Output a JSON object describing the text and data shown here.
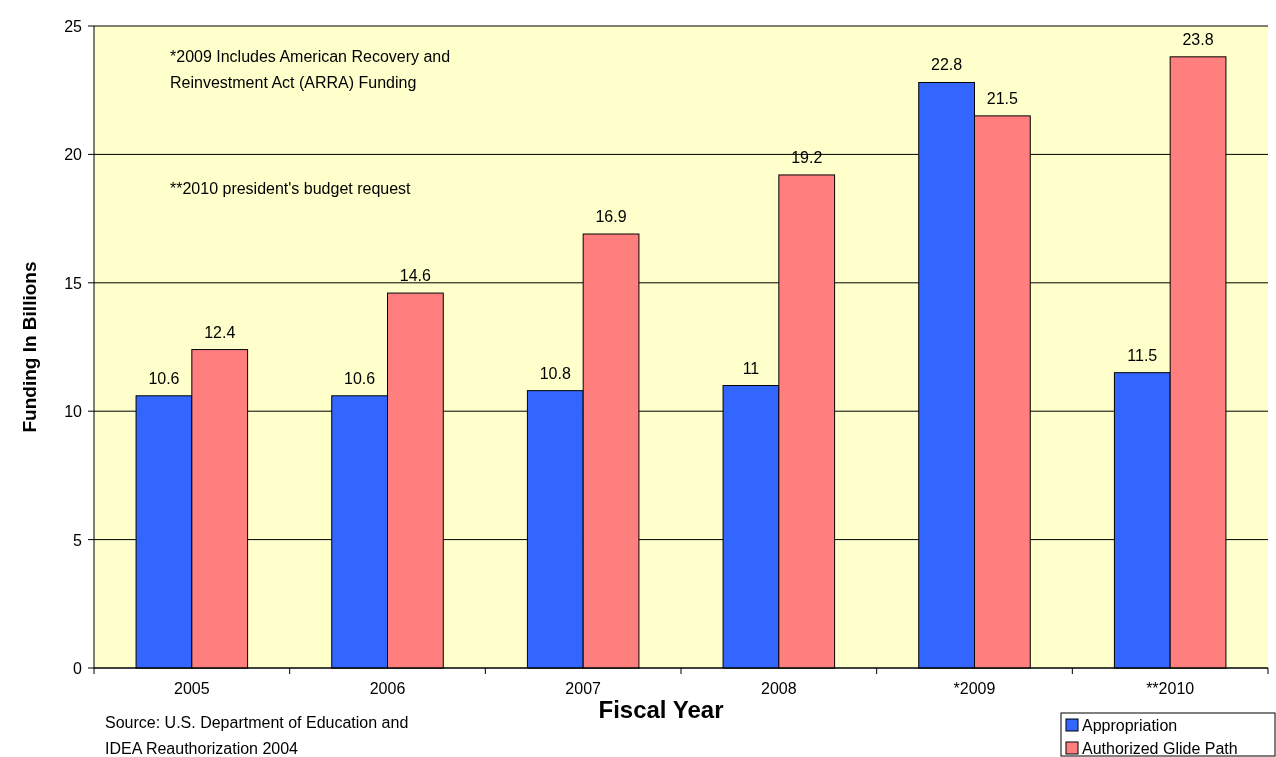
{
  "chart_data": {
    "type": "bar",
    "xlabel": "Fiscal Year",
    "ylabel": "Funding In Billions",
    "categories": [
      "2005",
      "2006",
      "2007",
      "2008",
      "*2009",
      "**2010"
    ],
    "series": [
      {
        "name": "Appropriation",
        "color": "#3366ff",
        "values": [
          10.6,
          10.6,
          10.8,
          11,
          22.8,
          11.5
        ]
      },
      {
        "name": "Authorized Glide Path",
        "color": "#ff7f7f",
        "values": [
          12.4,
          14.6,
          16.9,
          19.2,
          21.5,
          23.8
        ]
      }
    ],
    "ylim": [
      0,
      25
    ],
    "yticks": [
      0,
      5,
      10,
      15,
      20,
      25
    ],
    "grid": "y",
    "legend": "bottom right",
    "data_labels": true,
    "annotations": [
      "*2009 Includes American Recovery and\nReinvestment Act (ARRA) Funding",
      "**2010 president's budget request",
      "Source: U.S. Department of Education and\nIDEA Reauthorization 2004"
    ]
  }
}
